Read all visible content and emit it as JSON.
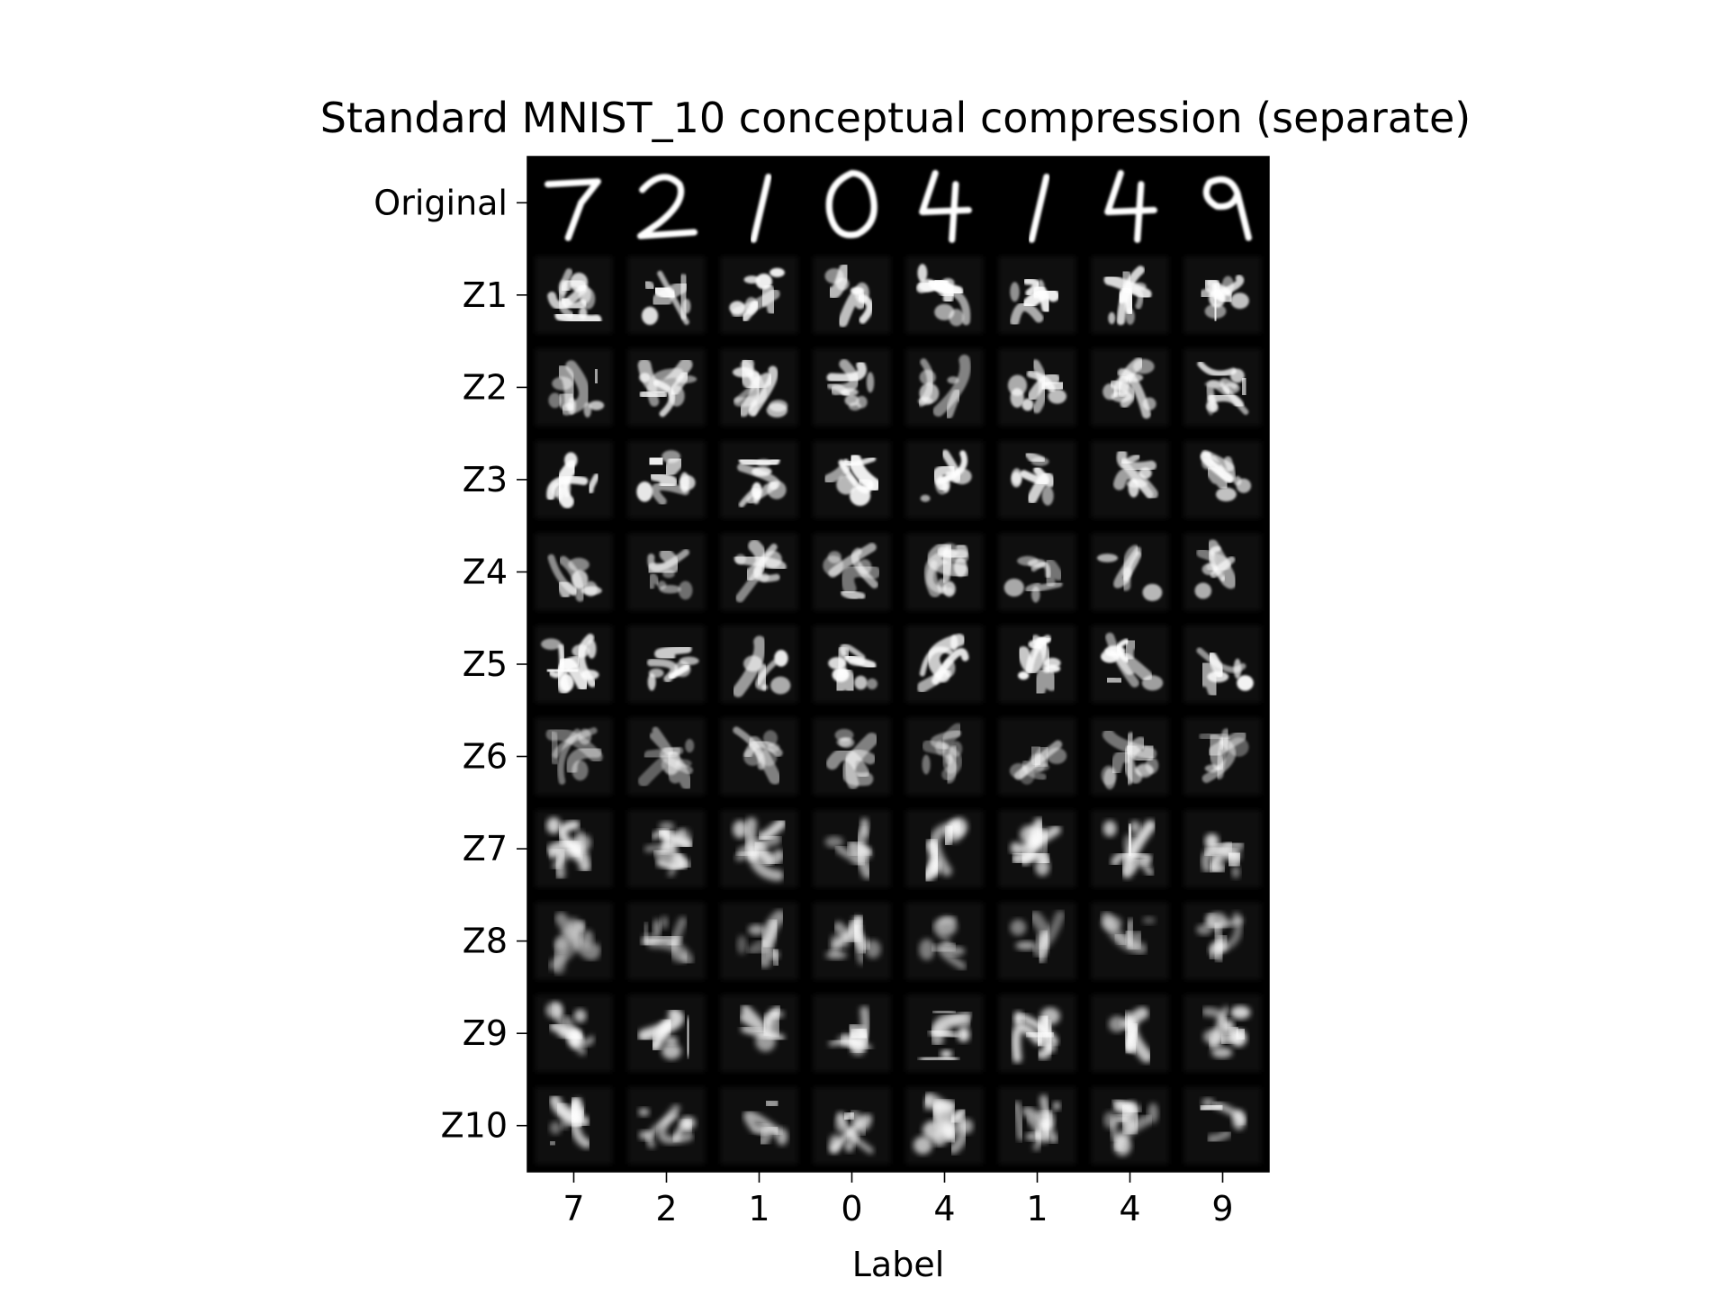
{
  "chart_data": {
    "type": "heatmap",
    "title": "Standard MNIST_10 conceptual compression (separate)",
    "xlabel": "Label",
    "ylabel": "",
    "x_tick_labels": [
      "7",
      "2",
      "1",
      "0",
      "4",
      "1",
      "4",
      "9"
    ],
    "y_tick_labels": [
      "Original",
      "Z1",
      "Z2",
      "Z3",
      "Z4",
      "Z5",
      "Z6",
      "Z7",
      "Z8",
      "Z9",
      "Z10"
    ],
    "columns": 8,
    "rows": 11,
    "colormap": "grayscale",
    "background_color": "#000000",
    "grid": false
  }
}
